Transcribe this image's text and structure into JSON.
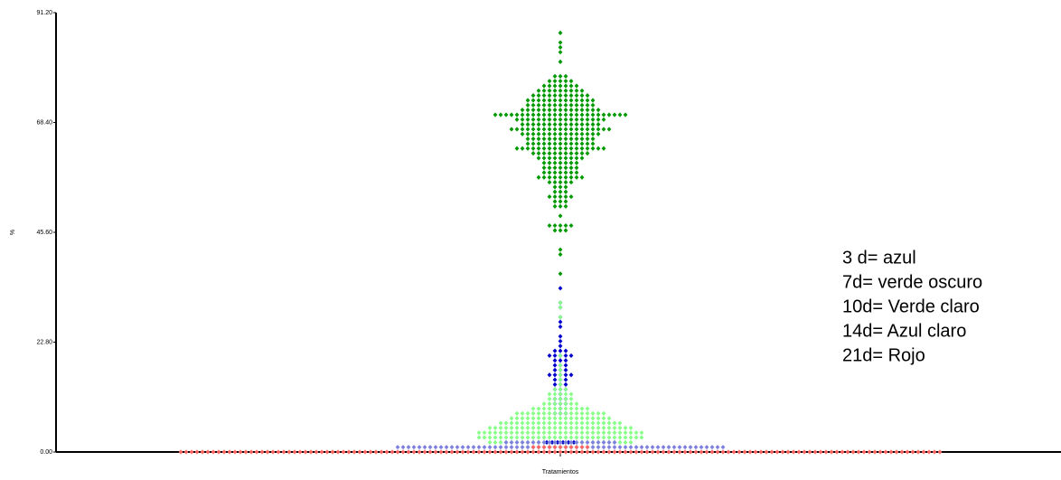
{
  "chart_data": {
    "type": "dotplot",
    "xlabel": "Tratamientos",
    "ylabel": "%",
    "ylim": [
      0,
      91.2
    ],
    "yticks": [
      {
        "value": 0,
        "label": "0.00"
      },
      {
        "value": 22.8,
        "label": "22.80"
      },
      {
        "value": 45.6,
        "label": "45.60"
      },
      {
        "value": 68.4,
        "label": "68.40"
      },
      {
        "value": 91.2,
        "label": "91.20"
      }
    ],
    "annotations": [
      "3 d= azul",
      "7d=  verde oscuro",
      "10d= Verde claro",
      "14d= Azul claro",
      "21d= Rojo"
    ],
    "series": [
      {
        "color": "#009900",
        "values": [
          87,
          85,
          84,
          83,
          81,
          78,
          78,
          78,
          77,
          77,
          77,
          77,
          77,
          76,
          76,
          76,
          76,
          76,
          76,
          76,
          75,
          75,
          75,
          75,
          75,
          75,
          75,
          75,
          75,
          74,
          74,
          74,
          74,
          74,
          74,
          74,
          74,
          74,
          74,
          74,
          73,
          73,
          73,
          73,
          73,
          73,
          73,
          73,
          73,
          73,
          73,
          73,
          73,
          72,
          72,
          72,
          72,
          72,
          72,
          72,
          72,
          72,
          72,
          72,
          72,
          72,
          71,
          71,
          71,
          71,
          71,
          71,
          71,
          71,
          71,
          71,
          71,
          71,
          71,
          71,
          71,
          70,
          70,
          70,
          70,
          70,
          70,
          70,
          70,
          70,
          70,
          70,
          70,
          70,
          70,
          70,
          70,
          70,
          70,
          70,
          70,
          70,
          70,
          70,
          70,
          70,
          69,
          69,
          69,
          69,
          69,
          69,
          69,
          69,
          69,
          69,
          69,
          69,
          69,
          69,
          69,
          69,
          69,
          68,
          68,
          68,
          68,
          68,
          68,
          68,
          68,
          68,
          68,
          68,
          68,
          68,
          68,
          68,
          67,
          67,
          67,
          67,
          67,
          67,
          67,
          67,
          67,
          67,
          67,
          67,
          67,
          67,
          67,
          67,
          67,
          67,
          67,
          66,
          66,
          66,
          66,
          66,
          66,
          66,
          66,
          66,
          66,
          66,
          66,
          66,
          66,
          66,
          65,
          65,
          65,
          65,
          65,
          65,
          65,
          65,
          65,
          65,
          65,
          65,
          65,
          64,
          64,
          64,
          64,
          64,
          64,
          64,
          64,
          64,
          64,
          64,
          64,
          64,
          63,
          63,
          63,
          63,
          63,
          63,
          63,
          63,
          63,
          63,
          63,
          63,
          63,
          63,
          63,
          63,
          63,
          62,
          62,
          62,
          62,
          62,
          62,
          62,
          62,
          62,
          62,
          62,
          61,
          61,
          61,
          61,
          61,
          61,
          61,
          61,
          61,
          60,
          60,
          60,
          60,
          60,
          60,
          60,
          59,
          59,
          59,
          59,
          59,
          59,
          59,
          58,
          58,
          58,
          58,
          58,
          58,
          58,
          57,
          57,
          57,
          57,
          57,
          57,
          57,
          57,
          57,
          56,
          56,
          56,
          56,
          56,
          55,
          55,
          55,
          54,
          54,
          54,
          53,
          53,
          53,
          53,
          53,
          52,
          52,
          52,
          51,
          51,
          51,
          49,
          47,
          47,
          47,
          47,
          47,
          46,
          46,
          46,
          42,
          41,
          37
        ]
      },
      {
        "color": "#0000cc",
        "values": [
          34,
          31,
          30,
          28,
          27,
          26,
          24,
          23,
          22,
          21,
          21,
          21,
          20,
          20,
          20,
          20,
          20,
          19,
          19,
          19,
          18,
          18,
          18,
          17,
          17,
          17,
          16,
          16,
          16,
          16,
          16,
          15,
          15,
          15,
          14,
          14,
          14,
          13,
          13,
          13,
          12,
          11,
          11,
          11,
          10,
          10,
          10,
          9,
          8,
          8,
          8,
          2,
          2,
          2,
          2,
          2,
          2
        ]
      },
      {
        "color": "#88ff88",
        "values": [
          31,
          30,
          28,
          20,
          18,
          17,
          16,
          15,
          14,
          13,
          13,
          13,
          12,
          12,
          12,
          12,
          12,
          11,
          11,
          11,
          11,
          11,
          10,
          10,
          10,
          10,
          10,
          10,
          10,
          9,
          9,
          9,
          9,
          9,
          9,
          9,
          9,
          9,
          9,
          9,
          8,
          8,
          8,
          8,
          8,
          8,
          8,
          8,
          8,
          8,
          8,
          8,
          8,
          8,
          8,
          8,
          8,
          7,
          7,
          7,
          7,
          7,
          7,
          7,
          7,
          7,
          7,
          7,
          7,
          7,
          7,
          7,
          7,
          7,
          7,
          7,
          6,
          6,
          6,
          6,
          6,
          6,
          6,
          6,
          6,
          6,
          6,
          6,
          6,
          6,
          6,
          6,
          6,
          6,
          6,
          6,
          6,
          6,
          6,
          5,
          5,
          5,
          5,
          5,
          5,
          5,
          5,
          5,
          5,
          5,
          5,
          5,
          5,
          5,
          5,
          5,
          5,
          5,
          5,
          5,
          5,
          5,
          5,
          5,
          5,
          5,
          4,
          4,
          4,
          4,
          4,
          4,
          4,
          4,
          4,
          4,
          4,
          4,
          4,
          4,
          4,
          4,
          4,
          4,
          4,
          4,
          4,
          4,
          4,
          4,
          4,
          4,
          4,
          4,
          4,
          4,
          4,
          3,
          3,
          3,
          3,
          3,
          3,
          3,
          3,
          3,
          3,
          3,
          3,
          3,
          3,
          3,
          3,
          3,
          3,
          3,
          3,
          3,
          3,
          3,
          3,
          3,
          3,
          3,
          3,
          3,
          3,
          3,
          2,
          2,
          2,
          2,
          2,
          2,
          2,
          2,
          2,
          2,
          2,
          2,
          2,
          2,
          2,
          2,
          2,
          2,
          2,
          2,
          2,
          2,
          2,
          2,
          2,
          2,
          2,
          1,
          1,
          1,
          1,
          1,
          1,
          1,
          1,
          1,
          1,
          1,
          1,
          1,
          1,
          1
        ]
      },
      {
        "color": "#8080e0",
        "values": [
          2,
          2,
          2,
          2,
          2,
          2,
          2,
          2,
          2,
          2,
          2,
          2,
          2,
          2,
          2,
          2,
          2,
          2,
          2,
          2,
          2,
          1,
          1,
          1,
          1,
          1,
          1,
          1,
          1,
          1,
          1,
          1,
          1,
          1,
          1,
          1,
          1,
          1,
          1,
          1,
          1,
          1,
          1,
          1,
          1,
          1,
          1,
          1,
          1,
          1,
          1,
          1,
          1,
          1,
          1,
          1,
          1,
          1,
          1,
          1,
          1,
          1,
          1,
          1,
          1,
          1,
          1,
          1,
          1,
          1,
          1,
          1,
          1,
          1,
          1,
          1,
          1,
          1,
          1,
          1,
          1,
          1
        ]
      },
      {
        "color": "#ff6666",
        "values": [
          0,
          0,
          0,
          0,
          0,
          0,
          0,
          0,
          0,
          0,
          0,
          0,
          0,
          0,
          0,
          0,
          0,
          0,
          0,
          0,
          0,
          0,
          0,
          0,
          0,
          0,
          0,
          0,
          0,
          0,
          0,
          0,
          0,
          0,
          0,
          0,
          0,
          0,
          0,
          0,
          0,
          0,
          0,
          0,
          0,
          0,
          0,
          0,
          0,
          0,
          0,
          0,
          0,
          0,
          0,
          0,
          0,
          0,
          0,
          0,
          0,
          0,
          0,
          0,
          0,
          0,
          0,
          0,
          0,
          0,
          0,
          0,
          0,
          0,
          0,
          0,
          0,
          0,
          0,
          0,
          0,
          0,
          0,
          0,
          0,
          0,
          0,
          0,
          0,
          0,
          0,
          0,
          0,
          0,
          0,
          0,
          0,
          0,
          0,
          0,
          0,
          0,
          0,
          0,
          0,
          0,
          0,
          0,
          0,
          0,
          0,
          0,
          0,
          0,
          0,
          0,
          0,
          0,
          0,
          0,
          0,
          0,
          0,
          0,
          0,
          0,
          0,
          0,
          0,
          0,
          0,
          0,
          0,
          0,
          0,
          0,
          0,
          0,
          0,
          0,
          0,
          1,
          1,
          1,
          1,
          1,
          1,
          1,
          1,
          1,
          1,
          1
        ]
      }
    ]
  }
}
